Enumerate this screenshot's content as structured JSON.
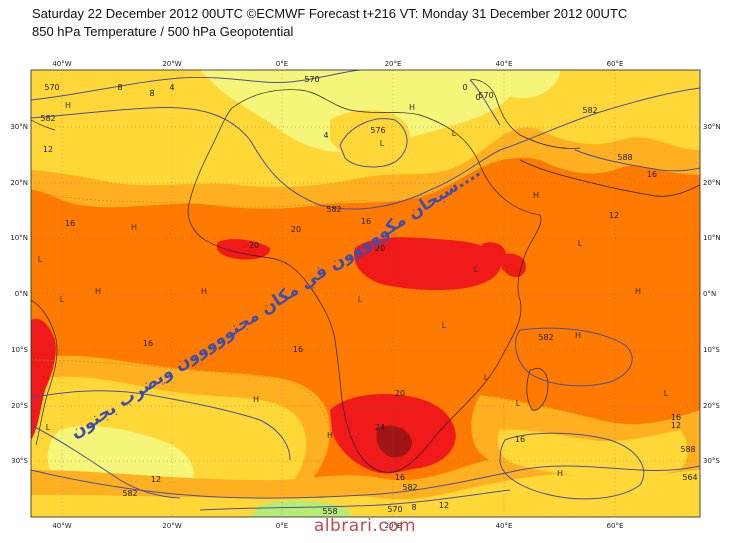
{
  "title": {
    "line1": "Saturday 22 December 2012 00UTC ©ECMWF Forecast t+216 VT: Monday 31 December 2012 00UTC",
    "line2": "850 hPa Temperature / 500 hPa Geopotential"
  },
  "axes": {
    "lon_labels": [
      "40°W",
      "20°W",
      "0°E",
      "20°E",
      "40°E",
      "60°E"
    ],
    "lat_labels_left": [
      "30°N",
      "20°N",
      "10°N",
      "0°N",
      "10°S",
      "20°S",
      "30°S"
    ],
    "lat_labels_right": [
      "30°N",
      "20°N",
      "10°N",
      "0°N",
      "10°S",
      "20°S",
      "30°S"
    ]
  },
  "contour_labels": {
    "geopotential": [
      "570",
      "582",
      "570",
      "576",
      "570",
      "582",
      "588",
      "582",
      "582",
      "582",
      "582",
      "588",
      "558",
      "570",
      "564"
    ],
    "temperature": [
      "12",
      "8",
      "4",
      "16",
      "16",
      "20",
      "16",
      "20",
      "12",
      "16",
      "16",
      "16",
      "20",
      "24",
      "16",
      "12",
      "16",
      "12",
      "20",
      "8",
      "4",
      "8",
      "12",
      "0",
      "0"
    ]
  },
  "pressure_centres": [
    "H",
    "L",
    "H",
    "H",
    "H",
    "L",
    "L",
    "H",
    "L",
    "H",
    "L",
    "L",
    "H",
    "H",
    "L",
    "L",
    "H",
    "L",
    "L",
    "H",
    "H",
    "L",
    "L"
  ],
  "annotation": "سبحان مكووووون في مكان مجنووووون ويضرب بجنون....",
  "watermark": "albrari.com",
  "colors": {
    "cold_yellow": "#f5f57a",
    "yellow": "#ffd838",
    "light_orange": "#ffb020",
    "orange": "#ff7a00",
    "red": "#f01a1a",
    "dark_red": "#a01616",
    "green": "#b6ec74",
    "contour": "#4a4fa0"
  }
}
